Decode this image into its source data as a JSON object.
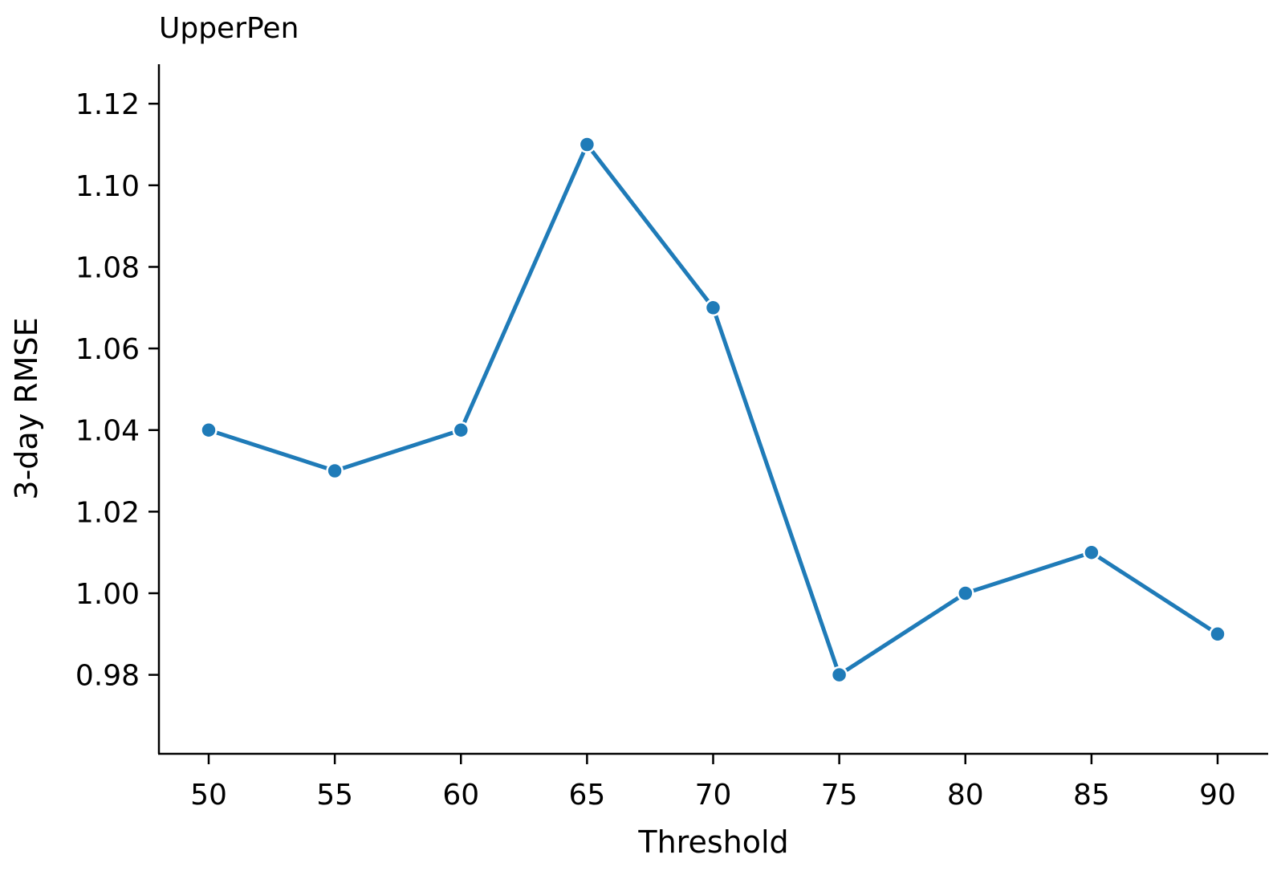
{
  "chart_data": {
    "type": "line",
    "title": "UpperPen",
    "xlabel": "Threshold",
    "ylabel": "3-day RMSE",
    "x": [
      50,
      55,
      60,
      65,
      70,
      75,
      80,
      85,
      90
    ],
    "xticks": [
      "50",
      "55",
      "60",
      "65",
      "70",
      "75",
      "80",
      "85",
      "90"
    ],
    "yticks": [
      "0.98",
      "1.00",
      "1.02",
      "1.04",
      "1.06",
      "1.08",
      "1.10",
      "1.12"
    ],
    "ytick_values": [
      0.98,
      1.0,
      1.02,
      1.04,
      1.06,
      1.08,
      1.1,
      1.12
    ],
    "xlim": [
      48,
      92
    ],
    "ylim": [
      0.961,
      1.13
    ],
    "grid": false,
    "series": [
      {
        "values": [
          1.04,
          1.03,
          1.04,
          1.11,
          1.07,
          0.98,
          1.0,
          1.01,
          0.99
        ],
        "color": "#1f7bb8",
        "marker": "circle"
      }
    ]
  }
}
